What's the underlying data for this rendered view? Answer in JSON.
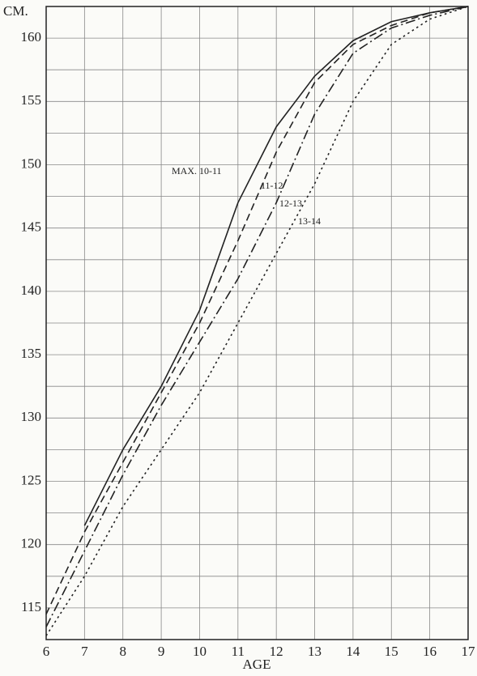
{
  "chart_data": {
    "type": "line",
    "y_label": "CM.",
    "x_label": "AGE",
    "x": [
      6,
      7,
      8,
      9,
      10,
      11,
      12,
      13,
      14,
      15,
      16,
      17
    ],
    "xlim": [
      6,
      17
    ],
    "xticks": [
      6,
      7,
      8,
      9,
      10,
      11,
      12,
      13,
      14,
      15,
      16,
      17
    ],
    "ylim": [
      112.5,
      162.5
    ],
    "yticks": [
      115,
      120,
      125,
      130,
      135,
      140,
      145,
      150,
      155,
      160
    ],
    "minor_yticks": [
      117.5,
      122.5,
      127.5,
      132.5,
      137.5,
      142.5,
      147.5,
      152.5,
      157.5
    ],
    "grid": true,
    "series": [
      {
        "name": "MAX. 10-11",
        "color": "#222222",
        "style": "solid",
        "values": [
          null,
          121.5,
          127.5,
          132.5,
          138.5,
          147,
          153,
          157,
          159.8,
          161.3,
          162,
          162.5
        ]
      },
      {
        "name": "11-12",
        "color": "#222222",
        "style": "dashed",
        "values": [
          114.5,
          121,
          126.5,
          132,
          137.5,
          144,
          151,
          156.5,
          159.5,
          161,
          162,
          162.5
        ]
      },
      {
        "name": "12-13",
        "color": "#222222",
        "style": "dashdot",
        "values": [
          113.5,
          119.5,
          125.5,
          131,
          136,
          141,
          147,
          154,
          158.8,
          160.8,
          161.8,
          162.5
        ]
      },
      {
        "name": "13-14",
        "color": "#222222",
        "style": "dotted",
        "values": [
          112.8,
          117.5,
          123,
          127.5,
          132,
          137.5,
          143,
          148.5,
          155,
          159.5,
          161.5,
          162.5
        ]
      }
    ]
  }
}
